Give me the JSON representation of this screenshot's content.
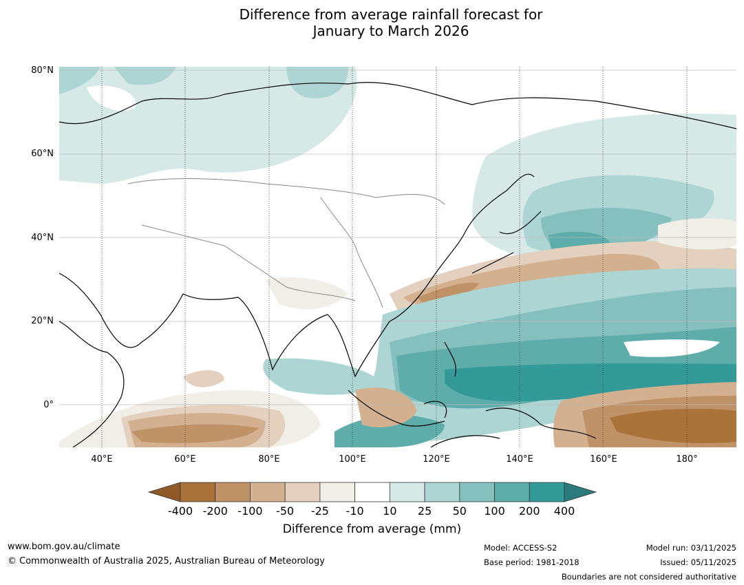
{
  "title_line1": "Difference from average rainfall forecast for",
  "title_line2": "January to March 2026",
  "lat_labels": [
    "80°N",
    "60°N",
    "40°N",
    "20°N",
    "0°"
  ],
  "lon_labels": [
    "40°E",
    "60°E",
    "80°E",
    "100°E",
    "120°E",
    "140°E",
    "160°E",
    "180°"
  ],
  "colorbar": {
    "ticks": [
      "-400",
      "-200",
      "-100",
      "-50",
      "-25",
      "-10",
      "10",
      "25",
      "50",
      "100",
      "200",
      "400"
    ],
    "colors": [
      "#a97339",
      "#c09268",
      "#d3b08f",
      "#e4d0bf",
      "#f1ede7",
      "#ffffff",
      "#d6e9e7",
      "#acd5d3",
      "#86c0be",
      "#5eadab",
      "#339a98"
    ],
    "under_color": "#8f5a28",
    "over_color": "#2c7b7a",
    "label": "Difference from average (mm)"
  },
  "footer": {
    "url": "www.bom.gov.au/climate",
    "copyright": "© Commonwealth of Australia 2025, Australian Bureau of Meteorology",
    "model": "Model: ACCESS-S2",
    "base_period": "Base period: 1981-2018",
    "model_run": "Model run: 03/11/2025",
    "issued": "Issued: 05/11/2025",
    "boundaries_note": "Boundaries are not considered authoritative"
  }
}
